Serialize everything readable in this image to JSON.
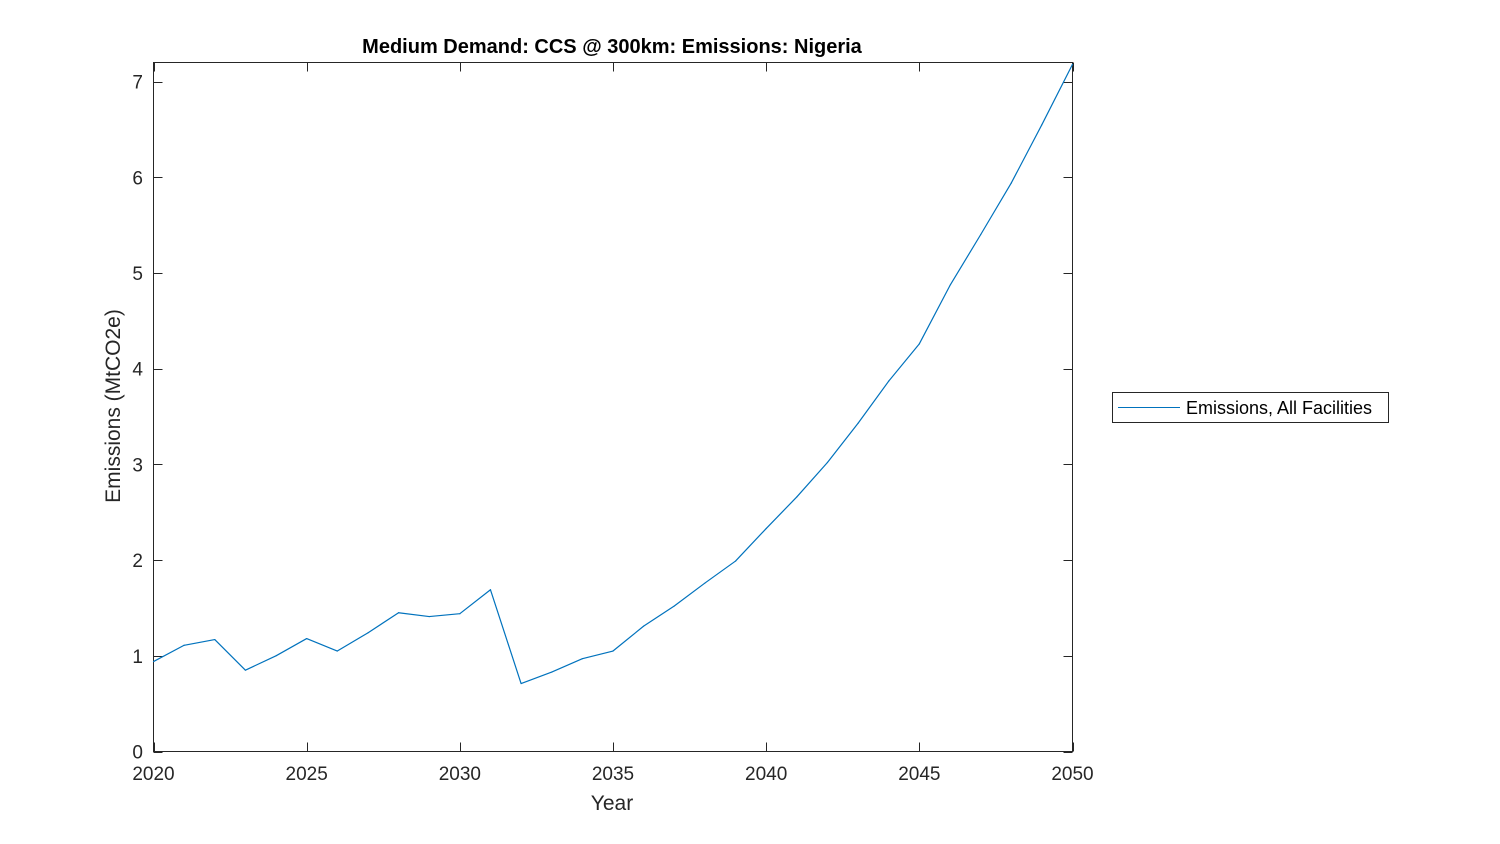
{
  "chart_data": {
    "type": "line",
    "title": "Medium Demand: CCS @ 300km: Emissions: Nigeria",
    "xlabel": "Year",
    "ylabel": "Emissions (MtCO2e)",
    "xlim": [
      2020,
      2050
    ],
    "ylim": [
      0,
      7.2
    ],
    "xticks": [
      2020,
      2025,
      2030,
      2035,
      2040,
      2045,
      2050
    ],
    "yticks": [
      0,
      1,
      2,
      3,
      4,
      5,
      6,
      7
    ],
    "grid": false,
    "legend_position": "outside-right",
    "series": [
      {
        "name": "Emissions, All Facilities",
        "color": "#0072BD",
        "x": [
          2020,
          2021,
          2022,
          2023,
          2024,
          2025,
          2026,
          2027,
          2028,
          2029,
          2030,
          2031,
          2032,
          2033,
          2034,
          2035,
          2036,
          2037,
          2038,
          2039,
          2040,
          2041,
          2042,
          2043,
          2044,
          2045,
          2046,
          2047,
          2048,
          2049,
          2050
        ],
        "y": [
          0.94,
          1.11,
          1.17,
          0.85,
          1.0,
          1.18,
          1.05,
          1.24,
          1.45,
          1.41,
          1.44,
          1.69,
          0.71,
          0.83,
          0.97,
          1.05,
          1.31,
          1.52,
          1.76,
          1.99,
          2.33,
          2.66,
          3.02,
          3.43,
          3.87,
          4.26,
          4.87,
          5.4,
          5.94,
          6.55,
          7.18
        ]
      }
    ]
  }
}
